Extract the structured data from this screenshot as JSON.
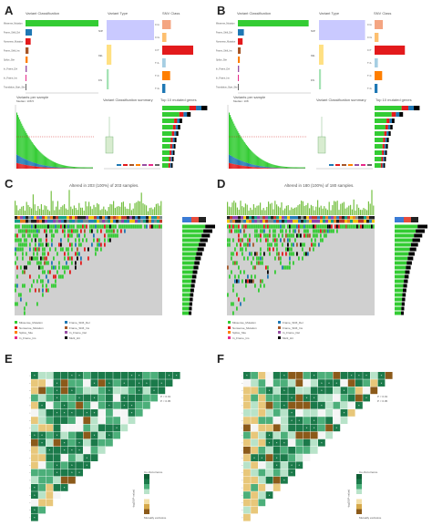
{
  "panels": {
    "A": "A",
    "B": "B",
    "C": "C",
    "D": "D",
    "E": "E",
    "F": "F"
  },
  "summary_titles": {
    "A": {
      "variant_classification": "Variant Classification",
      "variant_type": "Variant Type",
      "snv_class": "SNV Class",
      "variants_per_sample": "Variants per sample",
      "median": "Median: 108.5",
      "classification_summary": "Variant Classification summary",
      "top_genes": "Top 10 mutated genes"
    },
    "B": {
      "variant_classification": "Variant Classification",
      "variant_type": "Variant Type",
      "snv_class": "SNV Class",
      "variants_per_sample": "Variants per sample",
      "median": "Median: 108",
      "classification_summary": "Variant Classification summary",
      "top_genes": "Top 10 mutated genes"
    }
  },
  "oncoplot_titles": {
    "C": "Altered in 203 (100%) of 203 samples.",
    "D": "Altered in 180 (100%) of 180 samples."
  },
  "legend_items_C": [
    "Missense_Mutation",
    "Frame_Shift_Del",
    "Nonsense_Mutation",
    "Frame_Shift_Ins",
    "Splice_Site",
    "In_Frame_Del",
    "In_Frame_Ins",
    "Multi_Hit"
  ],
  "legend_items_D": [
    "Missense_Mutation",
    "Frame_Shift_Del",
    "Nonsense_Mutation",
    "Frame_Shift_Ins",
    "Splice_Site",
    "In_Frame_Del",
    "In_Frame_Ins",
    "Multi_Hit"
  ],
  "corr_legend": {
    "E": {
      "p1": "P < 0.01",
      "p2": "P < 0.05",
      "scale_top": "Co-Occurrence",
      "scale_bottom": "Mutually exclusive",
      "axis": "-log10(P-value)"
    },
    "F": {
      "p1": "P < 0.01",
      "p2": "P < 0.05",
      "scale_top": "Co-Occurrence",
      "scale_bottom": "Mutually exclusive",
      "axis": "-log10(P-value)"
    }
  },
  "colors": {
    "missense": "#33cc33",
    "nonsense": "#e31a1c",
    "frame_del": "#1f78b4",
    "frame_ins": "#a65628",
    "splice": "#ff7f00",
    "inframe_del": "#984ea3",
    "multi": "#000000",
    "coocc_dark": "#1b7a4a",
    "coocc_light": "#b8e3c9",
    "mutex": "#b8860b",
    "tmb": "#76c043",
    "grey_bg": "#d0d0d0"
  },
  "chart_data": [
    {
      "type": "bar",
      "panel": "A",
      "categories": [
        "Missense_Mutation",
        "Frame_Shift_Del",
        "Nonsense_Mutation",
        "Frame_Shift_Ins",
        "Splice_Site",
        "In_Frame_Del",
        "In_Frame_Ins",
        "Translation_Start_Site"
      ],
      "values": [
        17000,
        1500,
        1200,
        700,
        500,
        300,
        150,
        30
      ],
      "title": "Variant Classification"
    },
    {
      "type": "bar",
      "panel": "B",
      "categories": [
        "Missense_Mutation",
        "Frame_Shift_Del",
        "Nonsense_Mutation",
        "Frame_Shift_Ins",
        "Splice_Site",
        "In_Frame_Del",
        "In_Frame_Ins",
        "Translation_Start_Site"
      ],
      "values": [
        16500,
        1400,
        1100,
        650,
        450,
        280,
        140,
        25
      ],
      "title": "Variant Classification"
    },
    {
      "type": "bar",
      "panel": "A",
      "categories": [
        "SNP",
        "DEL",
        "INS"
      ],
      "values": [
        18000,
        1800,
        800
      ],
      "title": "Variant Type"
    },
    {
      "type": "bar",
      "panel": "B",
      "categories": [
        "SNP",
        "DEL",
        "INS"
      ],
      "values": [
        17500,
        1700,
        750
      ],
      "title": "Variant Type"
    },
    {
      "type": "bar",
      "panel": "A",
      "categories": [
        "C>A",
        "C>G",
        "C>T",
        "T>A",
        "T>C",
        "T>G"
      ],
      "values": [
        2500,
        1200,
        9000,
        1000,
        2300,
        900
      ],
      "title": "SNV Class"
    },
    {
      "type": "bar",
      "panel": "B",
      "categories": [
        "C>A",
        "C>G",
        "C>T",
        "T>A",
        "T>C",
        "T>G"
      ],
      "values": [
        2400,
        1150,
        8800,
        950,
        2200,
        850
      ],
      "title": "SNV Class"
    },
    {
      "type": "heatmap",
      "panel": "E",
      "note": "Co-occurrence / mutual exclusivity triangle matrix"
    },
    {
      "type": "heatmap",
      "panel": "F",
      "note": "Co-occurrence / mutual exclusivity triangle matrix"
    }
  ]
}
